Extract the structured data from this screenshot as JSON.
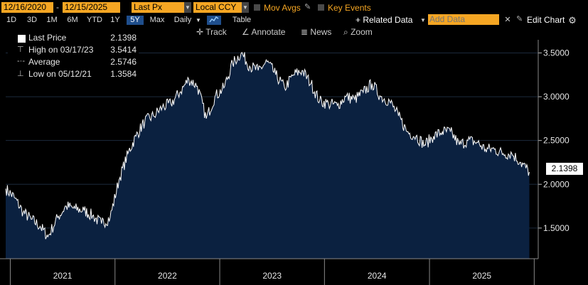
{
  "toolbar": {
    "start_date": "12/16/2020",
    "date_sep": "-",
    "end_date": "12/15/2025",
    "field": "Last Px",
    "currency": "Local CCY",
    "mov_avgs": "Mov Avgs",
    "key_events": "Key Events",
    "related_data": "+ Related Data",
    "add_data_placeholder": "Add Data",
    "edit_chart": "Edit Chart"
  },
  "periods": [
    "1D",
    "3D",
    "1M",
    "6M",
    "YTD",
    "1Y",
    "5Y",
    "Max"
  ],
  "active_period": "5Y",
  "frequency": "Daily",
  "table_label": "Table",
  "tools": {
    "track": "Track",
    "annotate": "Annotate",
    "news": "News",
    "zoom": "Zoom"
  },
  "legend": {
    "last_label": "Last Price",
    "last_value": "2.1398",
    "high_label": "High on 03/17/23",
    "high_value": "3.5414",
    "avg_label": "Average",
    "avg_value": "2.5746",
    "low_label": "Low on 05/12/21",
    "low_value": "1.3584"
  },
  "colors": {
    "accent": "#f5a623",
    "area_fill": "#0b2140",
    "line": "#ffffff",
    "active_tab": "#1f4e8c"
  },
  "chart_data": {
    "type": "area",
    "title": "",
    "xlabel": "",
    "ylabel": "",
    "ylim": [
      1.15,
      3.65
    ],
    "y_ticks": [
      "1.5000",
      "2.0000",
      "2.5000",
      "3.0000",
      "3.5000"
    ],
    "y_tick_values": [
      1.5,
      2.0,
      2.5,
      3.0,
      3.5
    ],
    "x_ticks": [
      "2021",
      "2022",
      "2023",
      "2024",
      "2025"
    ],
    "last_value_label": "2.1398",
    "series": [
      {
        "x": [
          "2020-12-16",
          "2021-01-15",
          "2021-02-15",
          "2021-03-15",
          "2021-04-15",
          "2021-05-12",
          "2021-06-15",
          "2021-07-15",
          "2021-08-15",
          "2021-09-15",
          "2021-10-15",
          "2021-11-15",
          "2021-12-15",
          "2022-01-15",
          "2022-02-15",
          "2022-03-15",
          "2022-04-15",
          "2022-05-15",
          "2022-06-15",
          "2022-07-15",
          "2022-08-15",
          "2022-09-15",
          "2022-10-15",
          "2022-11-15",
          "2022-12-15",
          "2023-01-15",
          "2023-02-15",
          "2023-03-17",
          "2023-04-15",
          "2023-05-15",
          "2023-06-15",
          "2023-07-15",
          "2023-08-15",
          "2023-09-15",
          "2023-10-15",
          "2023-11-15",
          "2023-12-15",
          "2024-01-15",
          "2024-02-15",
          "2024-03-15",
          "2024-04-15",
          "2024-05-15",
          "2024-06-15",
          "2024-07-15",
          "2024-08-15",
          "2024-09-15",
          "2024-10-15",
          "2024-11-15",
          "2024-12-15",
          "2025-01-15",
          "2025-02-15",
          "2025-03-15",
          "2025-04-15",
          "2025-05-15",
          "2025-06-15",
          "2025-07-15",
          "2025-08-15",
          "2025-09-15",
          "2025-10-15",
          "2025-11-15",
          "2025-12-15"
        ],
        "values": [
          1.95,
          1.85,
          1.68,
          1.6,
          1.52,
          1.4,
          1.62,
          1.75,
          1.72,
          1.7,
          1.64,
          1.55,
          1.62,
          2.05,
          2.35,
          2.55,
          2.72,
          2.78,
          2.88,
          2.92,
          3.05,
          3.2,
          3.12,
          2.75,
          3.0,
          3.1,
          3.38,
          3.5,
          3.35,
          3.3,
          3.4,
          3.25,
          3.1,
          3.25,
          3.3,
          3.15,
          2.95,
          2.92,
          2.9,
          3.0,
          2.97,
          3.05,
          3.15,
          3.0,
          2.95,
          2.78,
          2.6,
          2.55,
          2.45,
          2.55,
          2.6,
          2.6,
          2.45,
          2.5,
          2.48,
          2.4,
          2.4,
          2.35,
          2.35,
          2.25,
          2.14
        ]
      }
    ]
  }
}
